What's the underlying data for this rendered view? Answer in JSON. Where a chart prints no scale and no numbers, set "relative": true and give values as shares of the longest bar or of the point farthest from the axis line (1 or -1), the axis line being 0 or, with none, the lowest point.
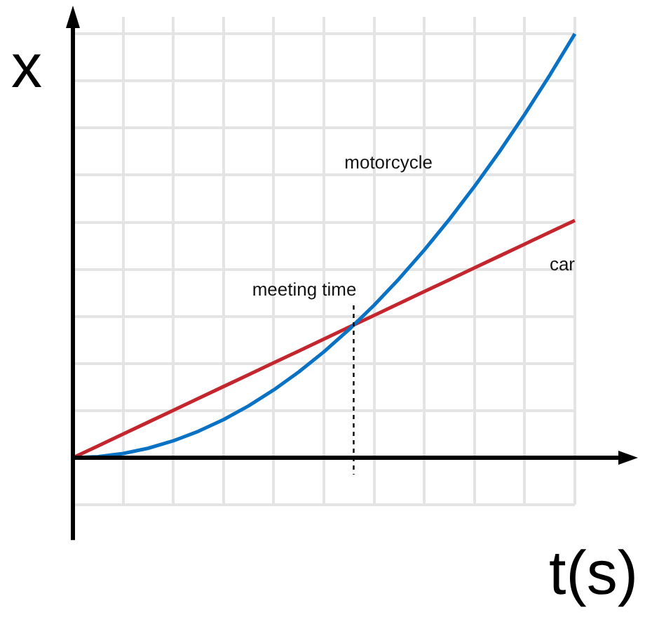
{
  "chart_data": {
    "type": "line",
    "relative": true,
    "xlabel": "t(s)",
    "ylabel": "x",
    "categories": [
      null,
      null,
      null,
      null,
      null,
      null,
      null,
      null,
      null,
      null,
      null,
      null,
      null,
      null,
      null,
      null,
      null,
      null,
      null,
      null,
      null
    ],
    "grid": true,
    "marker": "none",
    "line_style": "solid",
    "annotations": [
      "meeting time"
    ],
    "series": [
      {
        "name": "motorcycle",
        "color": "#0a72c4",
        "values": [
          0,
          0.0025,
          0.01,
          0.0225,
          0.04,
          0.0625,
          0.09,
          0.1225,
          0.16,
          0.2025,
          0.25,
          0.3025,
          0.36,
          0.4225,
          0.49,
          0.5625,
          0.64,
          0.7225,
          0.81,
          0.9025,
          1
        ]
      },
      {
        "name": "car",
        "color": "#c4262e",
        "values": [
          0,
          0.028,
          0.056,
          0.084,
          0.112,
          0.14,
          0.168,
          0.196,
          0.224,
          0.252,
          0.28,
          0.308,
          0.336,
          0.364,
          0.392,
          0.42,
          0.448,
          0.476,
          0.504,
          0.532,
          0.56
        ]
      }
    ]
  }
}
